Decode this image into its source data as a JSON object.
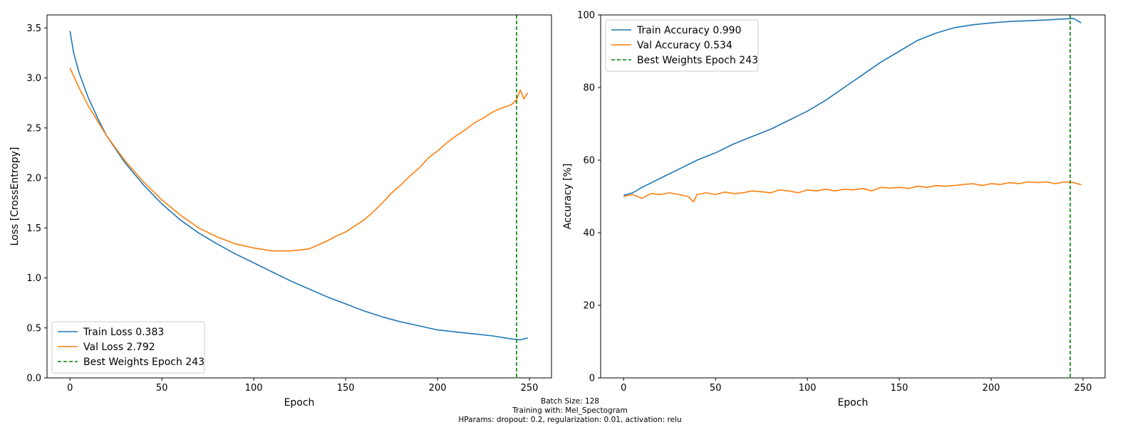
{
  "colors": {
    "train": "#1f77b4",
    "val": "#ff7f0e",
    "best": "#008000"
  },
  "caption": {
    "line1": "Batch Size: 128",
    "line2": "Training with: Mel_Spectogram",
    "line3": "HParams: dropout: 0.2, regularization: 0.01, activation: relu"
  },
  "chart_data": [
    {
      "type": "line",
      "xlabel": "Epoch",
      "ylabel": "Loss [CrossEntropy]",
      "xlim": [
        -12.5,
        262
      ],
      "ylim": [
        0,
        3.63
      ],
      "xticks": [
        0,
        50,
        100,
        150,
        200,
        250
      ],
      "yticks": [
        0.0,
        0.5,
        1.0,
        1.5,
        2.0,
        2.5,
        3.0,
        3.5
      ],
      "ytick_decimals": 1,
      "grid": false,
      "legend_position": "lower-left",
      "best_epoch": 243,
      "series": [
        {
          "name": "Train Loss 0.383",
          "x": [
            0,
            2,
            5,
            10,
            15,
            20,
            30,
            40,
            50,
            60,
            70,
            80,
            90,
            100,
            110,
            120,
            130,
            140,
            150,
            160,
            170,
            180,
            190,
            200,
            210,
            220,
            230,
            240,
            245,
            249
          ],
          "y": [
            3.47,
            3.25,
            3.05,
            2.8,
            2.6,
            2.42,
            2.15,
            1.93,
            1.74,
            1.58,
            1.45,
            1.34,
            1.24,
            1.15,
            1.06,
            0.97,
            0.89,
            0.81,
            0.74,
            0.67,
            0.61,
            0.56,
            0.52,
            0.48,
            0.46,
            0.44,
            0.42,
            0.39,
            0.38,
            0.4
          ]
        },
        {
          "name": "Val Loss 2.792",
          "x": [
            0,
            5,
            10,
            20,
            30,
            40,
            50,
            60,
            70,
            80,
            90,
            100,
            110,
            120,
            130,
            135,
            140,
            145,
            150,
            155,
            160,
            165,
            170,
            175,
            180,
            185,
            190,
            195,
            200,
            205,
            210,
            215,
            220,
            225,
            230,
            235,
            240,
            243,
            245,
            247,
            249
          ],
          "y": [
            3.1,
            2.9,
            2.72,
            2.42,
            2.17,
            1.96,
            1.78,
            1.63,
            1.5,
            1.41,
            1.34,
            1.3,
            1.27,
            1.27,
            1.29,
            1.33,
            1.37,
            1.42,
            1.46,
            1.52,
            1.58,
            1.66,
            1.75,
            1.85,
            1.93,
            2.02,
            2.1,
            2.2,
            2.27,
            2.35,
            2.42,
            2.48,
            2.55,
            2.6,
            2.66,
            2.7,
            2.73,
            2.78,
            2.88,
            2.79,
            2.85
          ]
        }
      ],
      "best_line_label": "Best Weights Epoch 243"
    },
    {
      "type": "line",
      "xlabel": "Epoch",
      "ylabel": "Accuracy [%]",
      "xlim": [
        -12.5,
        262
      ],
      "ylim": [
        0,
        100
      ],
      "xticks": [
        0,
        50,
        100,
        150,
        200,
        250
      ],
      "yticks": [
        0,
        20,
        40,
        60,
        80,
        100
      ],
      "ytick_decimals": 0,
      "grid": false,
      "legend_position": "upper-left",
      "best_epoch": 243,
      "series": [
        {
          "name": "Train Accuracy 0.990",
          "x": [
            0,
            5,
            10,
            20,
            30,
            40,
            50,
            60,
            70,
            80,
            90,
            100,
            110,
            120,
            130,
            140,
            150,
            160,
            170,
            180,
            190,
            200,
            210,
            220,
            230,
            240,
            245,
            249
          ],
          "y": [
            50.3,
            51,
            52.5,
            55,
            57.5,
            60,
            62,
            64.5,
            66.5,
            68.5,
            71,
            73.5,
            76.5,
            80,
            83.5,
            87,
            90,
            93,
            95,
            96.5,
            97.3,
            97.8,
            98.2,
            98.4,
            98.6,
            98.9,
            99,
            97.8
          ]
        },
        {
          "name": "Val Accuracy 0.534",
          "x": [
            0,
            5,
            10,
            15,
            20,
            25,
            30,
            35,
            38,
            40,
            45,
            50,
            55,
            60,
            65,
            70,
            75,
            80,
            85,
            90,
            95,
            100,
            105,
            110,
            115,
            120,
            125,
            130,
            135,
            140,
            145,
            150,
            155,
            160,
            165,
            170,
            175,
            180,
            185,
            190,
            195,
            200,
            205,
            210,
            215,
            220,
            225,
            230,
            235,
            240,
            245,
            249
          ],
          "y": [
            50,
            50.5,
            49.5,
            50.8,
            50.5,
            51,
            50.5,
            50,
            48.5,
            50.5,
            51,
            50.5,
            51.2,
            50.8,
            51,
            51.5,
            51.3,
            51,
            51.8,
            51.5,
            51,
            51.8,
            51.5,
            52,
            51.5,
            52,
            51.8,
            52.2,
            51.5,
            52.5,
            52.3,
            52.5,
            52.2,
            52.8,
            52.5,
            53,
            52.8,
            53,
            53.3,
            53.5,
            53,
            53.5,
            53.3,
            53.8,
            53.5,
            54,
            53.8,
            54,
            53.5,
            54,
            53.8,
            53.2
          ]
        }
      ],
      "best_line_label": "Best Weights Epoch 243"
    }
  ]
}
